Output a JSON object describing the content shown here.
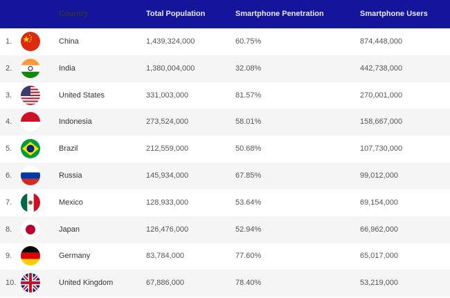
{
  "header": {
    "rank": "",
    "flag": "",
    "country": "Country",
    "population": "Total Population",
    "penetration": "Smartphone Penetration",
    "users": "Smartphone Users"
  },
  "colors": {
    "header_bg": "#15159b",
    "row_alt": "#f5f5f5"
  },
  "rows": [
    {
      "rank": "1.",
      "flag": "china-flag-icon",
      "country": "China",
      "population": "1,439,324,000",
      "penetration": "60.75%",
      "users": "874,448,000"
    },
    {
      "rank": "2.",
      "flag": "india-flag-icon",
      "country": "India",
      "population": "1,380,004,000",
      "penetration": "32.08%",
      "users": "442,738,000"
    },
    {
      "rank": "3.",
      "flag": "united-states-flag-icon",
      "country": "United States",
      "population": "331,003,000",
      "penetration": "81.57%",
      "users": "270,001,000"
    },
    {
      "rank": "4.",
      "flag": "indonesia-flag-icon",
      "country": "Indonesia",
      "population": "273,524,000",
      "penetration": "58.01%",
      "users": "158,667,000"
    },
    {
      "rank": "5.",
      "flag": "brazil-flag-icon",
      "country": "Brazil",
      "population": "212,559,000",
      "penetration": "50.68%",
      "users": "107,730,000"
    },
    {
      "rank": "6.",
      "flag": "russia-flag-icon",
      "country": "Russia",
      "population": "145,934,000",
      "penetration": "67.85%",
      "users": "99,012,000"
    },
    {
      "rank": "7.",
      "flag": "mexico-flag-icon",
      "country": "Mexico",
      "population": "128,933,000",
      "penetration": "53.64%",
      "users": "69,154,000"
    },
    {
      "rank": "8.",
      "flag": "japan-flag-icon",
      "country": "Japan",
      "population": "126,476,000",
      "penetration": "52.94%",
      "users": "66,962,000"
    },
    {
      "rank": "9.",
      "flag": "germany-flag-icon",
      "country": "Germany",
      "population": "83,784,000",
      "penetration": "77.60%",
      "users": "65,017,000"
    },
    {
      "rank": "10.",
      "flag": "united-kingdom-flag-icon",
      "country": "United Kingdom",
      "population": "67,886,000",
      "penetration": "78.40%",
      "users": "53,219,000"
    }
  ]
}
